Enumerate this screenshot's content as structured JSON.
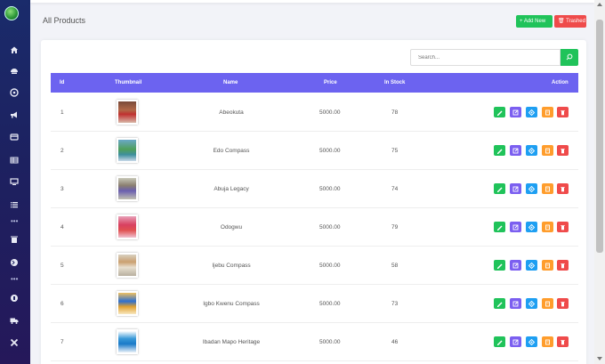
{
  "page": {
    "title": "All Products"
  },
  "header": {
    "add_label": "+ Add New",
    "trash_label": "🗑 Trashed"
  },
  "search": {
    "placeholder": "Search..."
  },
  "table": {
    "headers": {
      "id": "Id",
      "thumbnail": "Thumbnail",
      "name": "Name",
      "price": "Price",
      "stock": "In Stock",
      "action": "Action"
    },
    "rows": [
      {
        "id": "1",
        "name": "Abeokuta",
        "price": "5000.00",
        "stock": "78"
      },
      {
        "id": "2",
        "name": "Edo Compass",
        "price": "5000.00",
        "stock": "75"
      },
      {
        "id": "3",
        "name": "Abuja Legacy",
        "price": "5000.00",
        "stock": "74"
      },
      {
        "id": "4",
        "name": "Odogwu",
        "price": "5000.00",
        "stock": "79"
      },
      {
        "id": "5",
        "name": "Ijebu Compass",
        "price": "5000.00",
        "stock": "58"
      },
      {
        "id": "6",
        "name": "Igbo Kwenu Compass",
        "price": "5000.00",
        "stock": "73"
      },
      {
        "id": "7",
        "name": "Ibadan Mapo Heritage",
        "price": "5000.00",
        "stock": "46"
      }
    ]
  },
  "sidebar": {
    "icons": [
      "home-icon",
      "dashboard-icon",
      "product-icon",
      "megaphone-icon",
      "card-icon",
      "table-icon",
      "monitor-icon",
      "list-icon",
      "more-icon",
      "trash-icon",
      "globe-icon",
      "more-icon",
      "pin-icon",
      "truck-icon",
      "tools-icon"
    ]
  },
  "colors": {
    "accent": "#6c63f0",
    "success": "#20c35a",
    "danger": "#ef4b4b",
    "info": "#1e9ff2",
    "warning": "#ff9d2c",
    "purple": "#7b5ff0",
    "sidebar": "#1d2160"
  }
}
